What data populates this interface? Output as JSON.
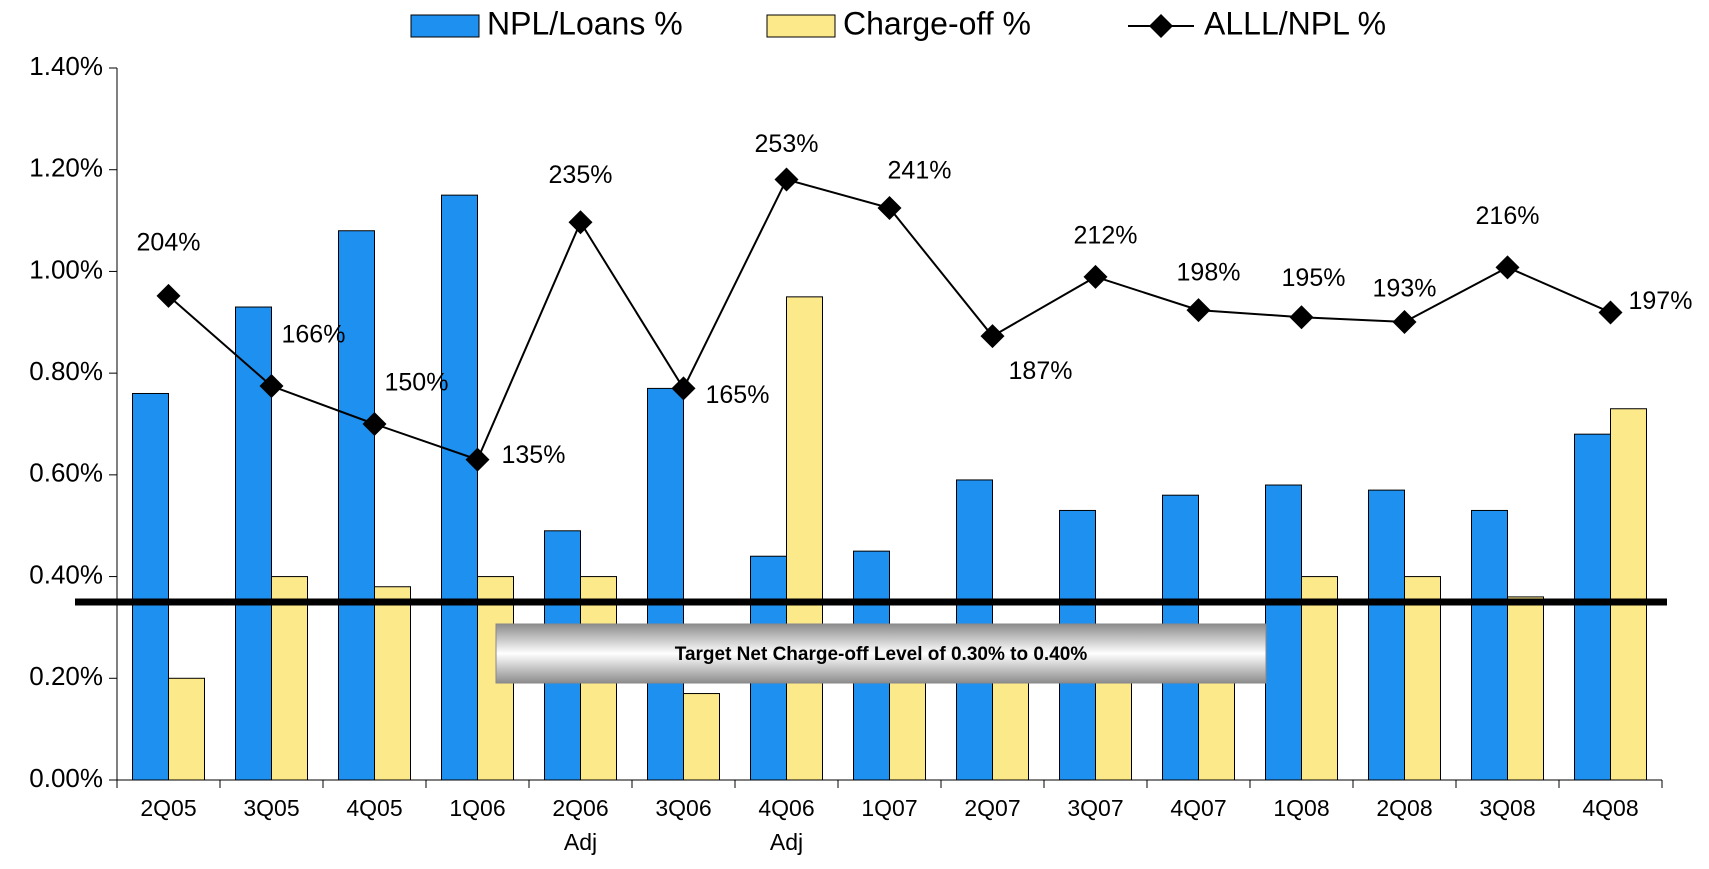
{
  "chart_data": {
    "type": "bar",
    "categories": [
      "2Q05",
      "3Q05",
      "4Q05",
      "1Q06",
      "2Q06 Adj",
      "3Q06",
      "4Q06 Adj",
      "1Q07",
      "2Q07",
      "3Q07",
      "4Q07",
      "1Q08",
      "2Q08",
      "3Q08",
      "4Q08"
    ],
    "series": [
      {
        "name": "NPL/Loans %",
        "type": "bar",
        "color": "#1e90f0",
        "values": [
          0.76,
          0.93,
          1.08,
          1.15,
          0.49,
          0.77,
          0.44,
          0.45,
          0.59,
          0.53,
          0.56,
          0.58,
          0.57,
          0.53,
          0.68
        ]
      },
      {
        "name": "Charge-off %",
        "type": "bar",
        "color": "#fbe98a",
        "values": [
          0.2,
          0.4,
          0.38,
          0.4,
          0.4,
          0.17,
          0.95,
          0.25,
          0.25,
          0.25,
          0.25,
          0.4,
          0.4,
          0.36,
          0.73
        ]
      },
      {
        "name": "ALLL/NPL %",
        "type": "line",
        "color": "#000000",
        "axis": "y2",
        "values": [
          204,
          166,
          150,
          135,
          235,
          165,
          253,
          241,
          187,
          212,
          198,
          195,
          193,
          216,
          197
        ],
        "value_labels": [
          "204%",
          "166%",
          "150%",
          "135%",
          "235%",
          "165%",
          "253%",
          "241%",
          "187%",
          "212%",
          "198%",
          "195%",
          "193%",
          "216%",
          "197%"
        ]
      }
    ],
    "ylim": [
      0,
      1.4
    ],
    "yticks": [
      {
        "value": 0,
        "label": "0.00%"
      },
      {
        "value": 0.2,
        "label": "0.20%"
      },
      {
        "value": 0.4,
        "label": "0.40%"
      },
      {
        "value": 0.6,
        "label": "0.60%"
      },
      {
        "value": 0.8,
        "label": "0.80%"
      },
      {
        "value": 1.0,
        "label": "1.00%"
      },
      {
        "value": 1.2,
        "label": "1.20%"
      },
      {
        "value": 1.4,
        "label": "1.40%"
      }
    ],
    "y2lim": [
      0,
      300
    ],
    "target_line": 0.35,
    "annotation": "Target Net Charge-off Level of 0.30% to  0.40%",
    "legend": "top"
  }
}
